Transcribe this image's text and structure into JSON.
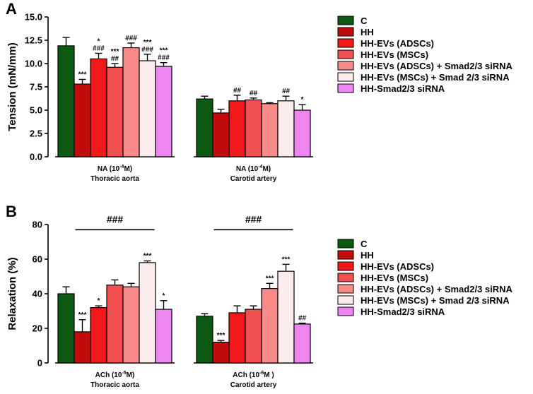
{
  "chart_data": [
    {
      "panel": "A",
      "type": "bar",
      "ylabel": "Tension (mN/mm)",
      "ylim": [
        0,
        15
      ],
      "yticks": [
        "0.0",
        "2.5",
        "5.0",
        "7.5",
        "10.0",
        "12.5",
        "15.0"
      ],
      "categories": [
        {
          "line1": "NA (10",
          "sup": "-4",
          "line1_end": "M)",
          "line2": "Thoracic aorta"
        },
        {
          "line1": "NA (10",
          "sup": "-4",
          "line1_end": "M)",
          "line2": "Carotid artery"
        }
      ],
      "series": [
        {
          "name": "C",
          "values": [
            11.9,
            6.2
          ],
          "errors": [
            0.9,
            0.3
          ],
          "annotations": [
            [],
            []
          ]
        },
        {
          "name": "HH",
          "values": [
            7.8,
            4.7
          ],
          "errors": [
            0.5,
            0.4
          ],
          "annotations": [
            [
              "***"
            ],
            []
          ]
        },
        {
          "name": "HH-EVs (ADSCs)",
          "values": [
            10.5,
            6.0
          ],
          "errors": [
            0.6,
            0.6
          ],
          "annotations": [
            [
              "*",
              "###"
            ],
            [
              "##"
            ]
          ]
        },
        {
          "name": "HH-EVs (MSCs)",
          "values": [
            9.6,
            6.1
          ],
          "errors": [
            0.4,
            0.2
          ],
          "annotations": [
            [
              "***",
              "##"
            ],
            [
              "##"
            ]
          ]
        },
        {
          "name": "HH-EVs (ADSCs) + Smad2/3 siRNA",
          "values": [
            11.7,
            5.7
          ],
          "errors": [
            0.5,
            0.1
          ],
          "annotations": [
            [
              "###"
            ],
            []
          ]
        },
        {
          "name": "HH-EVs (MSCs) + Smad 2/3 siRNA",
          "values": [
            10.3,
            6.0
          ],
          "errors": [
            0.7,
            0.5
          ],
          "annotations": [
            [
              "***",
              "###"
            ],
            [
              "##"
            ]
          ]
        },
        {
          "name": "HH-Smad2/3 siRNA",
          "values": [
            9.7,
            5.0
          ],
          "errors": [
            0.4,
            0.6
          ],
          "annotations": [
            [
              "***",
              "###"
            ],
            [
              "*"
            ]
          ]
        }
      ],
      "brackets": []
    },
    {
      "panel": "B",
      "type": "bar",
      "ylabel": "Relaxation (%)",
      "ylim": [
        0,
        80
      ],
      "yticks": [
        "0",
        "20",
        "40",
        "60",
        "80"
      ],
      "categories": [
        {
          "line1": "ACh (10",
          "sup": "-5",
          "line1_end": "M)",
          "line2": "Thoracic aorta"
        },
        {
          "line1": "ACh (10",
          "sup": "-6",
          "line1_end": "M )",
          "line2": "Carotid artery"
        }
      ],
      "series": [
        {
          "name": "C",
          "values": [
            40,
            27
          ],
          "errors": [
            4,
            1.5
          ],
          "annotations": [
            [],
            []
          ]
        },
        {
          "name": "HH",
          "values": [
            18,
            12
          ],
          "errors": [
            7,
            1
          ],
          "annotations": [
            [
              "***"
            ],
            [
              "***"
            ]
          ]
        },
        {
          "name": "HH-EVs (ADSCs)",
          "values": [
            32,
            29
          ],
          "errors": [
            1,
            4
          ],
          "annotations": [
            [
              "*"
            ],
            []
          ]
        },
        {
          "name": "HH-EVs (MSCs)",
          "values": [
            45,
            31
          ],
          "errors": [
            3,
            2
          ],
          "annotations": [
            [],
            []
          ]
        },
        {
          "name": "HH-EVs (ADSCs) + Smad2/3 siRNA",
          "values": [
            44,
            43
          ],
          "errors": [
            2,
            3
          ],
          "annotations": [
            [],
            [
              "***"
            ]
          ]
        },
        {
          "name": "HH-EVs (MSCs) + Smad 2/3 siRNA",
          "values": [
            58,
            53
          ],
          "errors": [
            1,
            4
          ],
          "annotations": [
            [
              "***"
            ],
            [
              "***"
            ]
          ]
        },
        {
          "name": "HH-Smad2/3 siRNA",
          "values": [
            31,
            22.5
          ],
          "errors": [
            5,
            0.5
          ],
          "annotations": [
            [
              "*"
            ],
            [
              "##"
            ]
          ]
        }
      ],
      "brackets": [
        {
          "group": 0,
          "from_series": 1,
          "to_series": 5,
          "label": "###",
          "y": 77
        },
        {
          "group": 1,
          "from_series": 1,
          "to_series": 5,
          "label": "###",
          "y": 77
        }
      ]
    }
  ],
  "legend": {
    "colors": [
      "#0c5a12",
      "#c20c0c",
      "#f01818",
      "#f05050",
      "#f88a8a",
      "#fdecec",
      "#ee86f2"
    ],
    "labels": [
      "C",
      "HH",
      "HH-EVs (ADSCs)",
      "HH-EVs (MSCs)",
      "HH-EVs (ADSCs) + Smad2/3 siRNA",
      "HH-EVs (MSCs) + Smad 2/3 siRNA",
      "HH-Smad2/3 siRNA"
    ]
  }
}
